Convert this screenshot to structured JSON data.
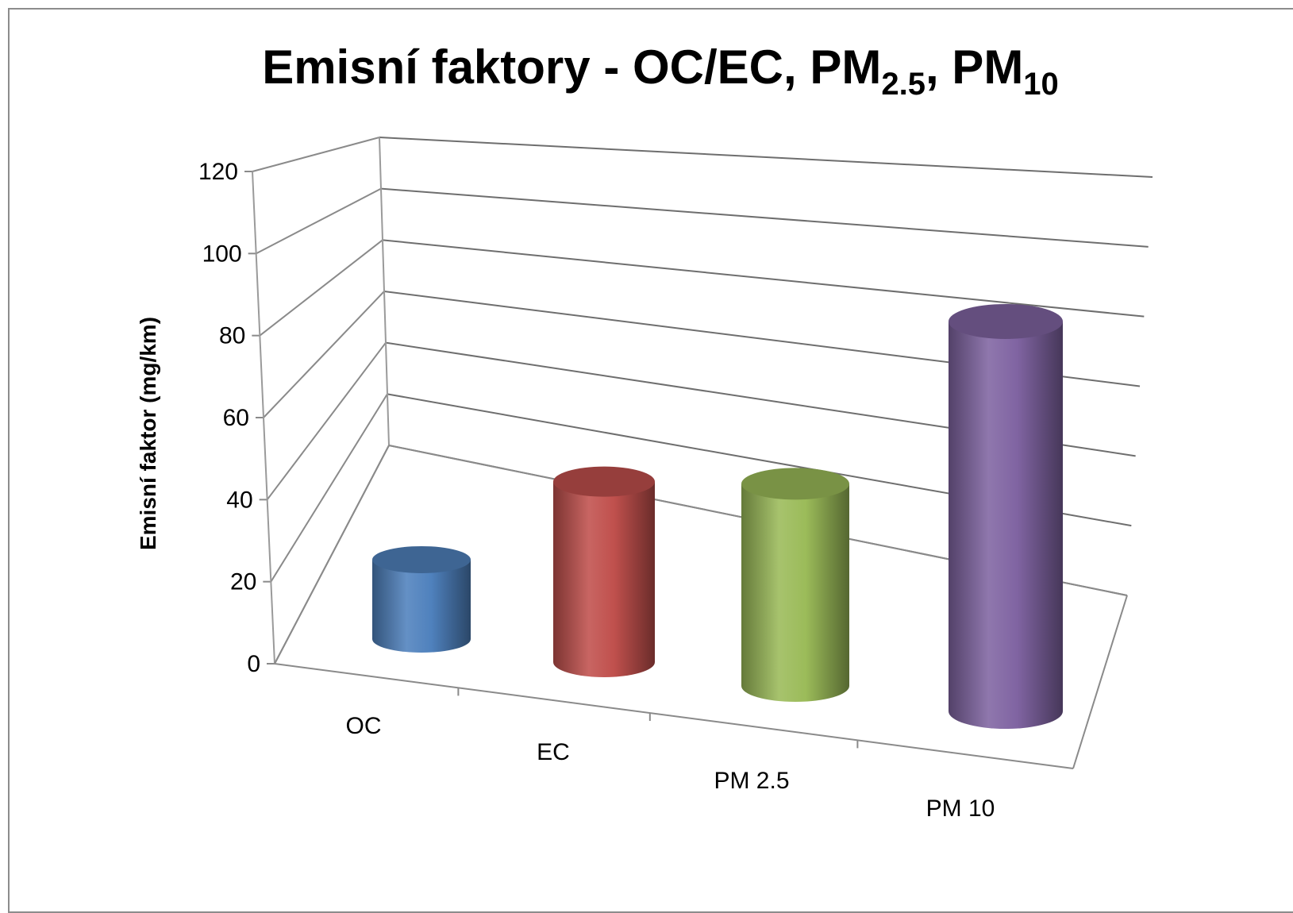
{
  "chart_data": {
    "type": "bar",
    "style": "3d-cylinder",
    "title": {
      "prefix": "Emisní faktory - OC/EC, PM",
      "sub1": "2.5",
      "mid": ", PM",
      "sub2": "10"
    },
    "xlabel": "",
    "ylabel": "Emisní faktor  (mg/km)",
    "categories": [
      "OC",
      "EC",
      "PM 2.5",
      "PM 10"
    ],
    "values": [
      22,
      50,
      56,
      108
    ],
    "colors": [
      "#4F81BD",
      "#C0504D",
      "#9BBB59",
      "#8064A2"
    ],
    "ylim": [
      0,
      120
    ],
    "yticks": [
      "0",
      "20",
      "40",
      "60",
      "80",
      "100",
      "120"
    ],
    "grid": true,
    "legend": "none"
  }
}
